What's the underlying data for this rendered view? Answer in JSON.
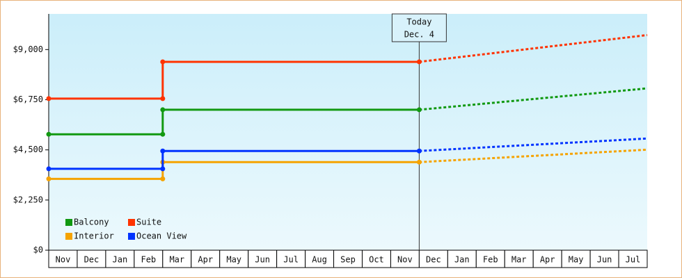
{
  "chart_data": {
    "type": "step-line",
    "categories": [
      "Nov",
      "Dec",
      "Jan",
      "Feb",
      "Mar",
      "Apr",
      "May",
      "Jun",
      "Jul",
      "Aug",
      "Sep",
      "Oct",
      "Nov",
      "Dec",
      "Jan",
      "Feb",
      "Mar",
      "Apr",
      "May",
      "Jun",
      "Jul"
    ],
    "ylim": [
      0,
      10600
    ],
    "yticks": [
      {
        "value": 0,
        "label": "$0"
      },
      {
        "value": 2250,
        "label": "$2,250"
      },
      {
        "value": 4500,
        "label": "$4,500"
      },
      {
        "value": 6750,
        "label": "$6,750"
      },
      {
        "value": 9000,
        "label": "$9,000"
      }
    ],
    "today_label": [
      "Today",
      "Dec. 4"
    ],
    "legend": "bottom-left",
    "series": [
      {
        "name": "Balcony",
        "color": "#119911",
        "values": [
          5200,
          5200,
          5200,
          5200,
          6300,
          6300,
          6300,
          6300,
          6300,
          6300,
          6300,
          6300,
          6300,
          6300,
          null,
          null,
          null,
          null,
          null,
          null,
          null
        ],
        "forecast": [
          null,
          null,
          null,
          null,
          null,
          null,
          null,
          null,
          null,
          null,
          null,
          null,
          null,
          6300,
          6420,
          6540,
          6660,
          6780,
          6900,
          7020,
          7140
        ]
      },
      {
        "name": "Suite",
        "color": "#ff3300",
        "values": [
          6800,
          6800,
          6800,
          6800,
          8450,
          8450,
          8450,
          8450,
          8450,
          8450,
          8450,
          8450,
          8450,
          8450,
          null,
          null,
          null,
          null,
          null,
          null,
          null
        ],
        "forecast": [
          null,
          null,
          null,
          null,
          null,
          null,
          null,
          null,
          null,
          null,
          null,
          null,
          null,
          8450,
          8600,
          8750,
          8900,
          9050,
          9200,
          9350,
          9500
        ]
      },
      {
        "name": "Interior",
        "color": "#f5a300",
        "values": [
          3200,
          3200,
          3200,
          3200,
          3950,
          3950,
          3950,
          3950,
          3950,
          3950,
          3950,
          3950,
          3950,
          3950,
          null,
          null,
          null,
          null,
          null,
          null,
          null
        ],
        "forecast": [
          null,
          null,
          null,
          null,
          null,
          null,
          null,
          null,
          null,
          null,
          null,
          null,
          null,
          3950,
          4020,
          4090,
          4160,
          4230,
          4300,
          4370,
          4440
        ]
      },
      {
        "name": "Ocean View",
        "color": "#0033ff",
        "values": [
          3650,
          3650,
          3650,
          3650,
          4450,
          4450,
          4450,
          4450,
          4450,
          4450,
          4450,
          4450,
          4450,
          4450,
          null,
          null,
          null,
          null,
          null,
          null,
          null
        ],
        "forecast": [
          null,
          null,
          null,
          null,
          null,
          null,
          null,
          null,
          null,
          null,
          null,
          null,
          null,
          4450,
          4520,
          4590,
          4660,
          4730,
          4800,
          4870,
          4940
        ]
      }
    ]
  }
}
